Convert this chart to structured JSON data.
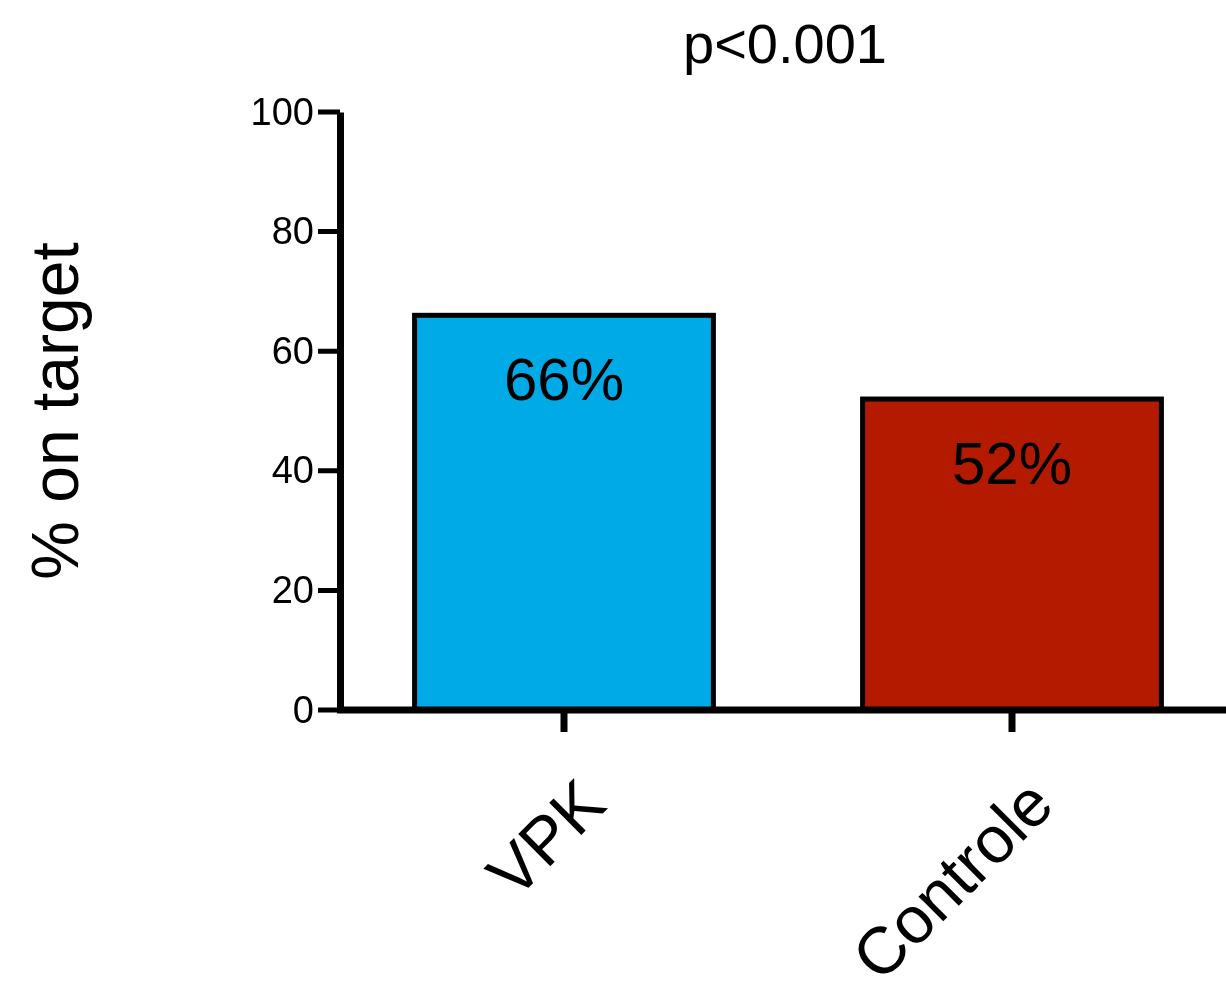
{
  "chart_data": {
    "type": "bar",
    "ylabel": "% on target",
    "annotations": [
      "p<0.001"
    ],
    "categories": [
      "VPK",
      "Controle"
    ],
    "values": [
      66,
      52
    ],
    "colors": [
      "#00aae6",
      "#b31a00"
    ],
    "value_labels": [
      "66%",
      "52%"
    ],
    "ylim": [
      0,
      100
    ],
    "yticks": [
      0,
      20,
      40,
      60,
      80,
      100
    ],
    "grid": false
  }
}
